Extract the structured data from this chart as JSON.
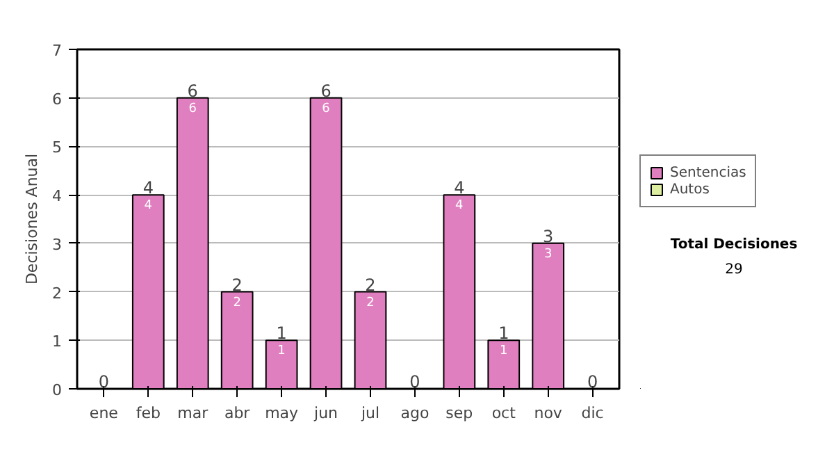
{
  "chart_data": {
    "type": "bar",
    "stacked": true,
    "ylabel": "Decisiones Anual",
    "categories": [
      "ene",
      "feb",
      "mar",
      "abr",
      "may",
      "jun",
      "jul",
      "ago",
      "sep",
      "oct",
      "nov",
      "dic"
    ],
    "series": [
      {
        "name": "Sentencias",
        "color": "#e07fbf",
        "values": [
          0,
          4,
          6,
          2,
          1,
          6,
          2,
          0,
          4,
          1,
          3,
          0
        ],
        "value_labels": [
          null,
          "4",
          "6",
          "2",
          "1",
          "6",
          "2",
          null,
          "4",
          "1",
          "3",
          null
        ]
      },
      {
        "name": "Autos",
        "color": "#ddeea0",
        "values": [
          0,
          0,
          0,
          0,
          0,
          0,
          0,
          0,
          0,
          0,
          0,
          0
        ]
      }
    ],
    "totals": [
      "0",
      "4",
      "6",
      "2",
      "1",
      "6",
      "2",
      "0",
      "4",
      "1",
      "3",
      "0"
    ],
    "ylim": [
      0,
      7
    ],
    "yticks": [
      0,
      1,
      2,
      3,
      4,
      5,
      6,
      7
    ],
    "grid": "y",
    "legend": "right",
    "annotations": [
      "Total Decisiones",
      "29"
    ]
  }
}
